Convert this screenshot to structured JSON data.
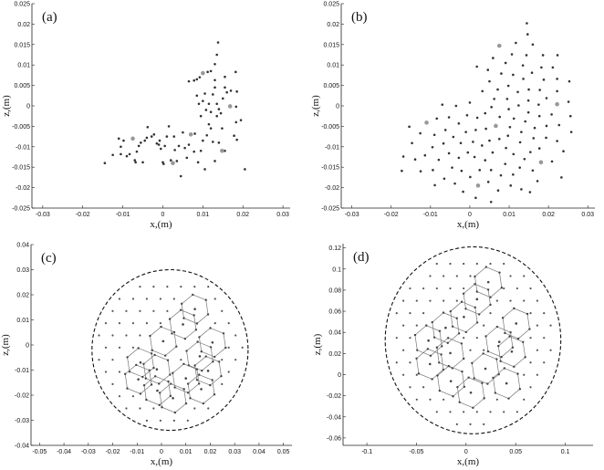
{
  "chart_data": [
    {
      "panel": "(a)",
      "type": "scatter",
      "xlabel": "x,(m)",
      "ylabel": "z,(m)",
      "xlim": [
        -0.0327,
        0.0318
      ],
      "ylim": [
        -0.025,
        0.025
      ],
      "xticks": [
        -0.03,
        -0.02,
        -0.01,
        0,
        0.01,
        0.02,
        0.03
      ],
      "xtick_labels": [
        "-0.03",
        "-0.02",
        "-0.01",
        "0",
        "0.01",
        "0.02",
        "0.03"
      ],
      "yticks": [
        -0.025,
        -0.02,
        -0.015,
        -0.01,
        -0.005,
        0,
        0.005,
        0.01,
        0.015,
        0.02,
        0.025
      ],
      "ytick_labels": [
        "-0.025",
        "-0.02",
        "-0.015",
        "-0.01",
        "-0.005",
        "0",
        "0.005",
        "0.01",
        "0.015",
        "0.02",
        "0.025"
      ],
      "points": [
        [
          -0.0145,
          -0.014
        ],
        [
          -0.0125,
          -0.012
        ],
        [
          -0.011,
          -0.008
        ],
        [
          -0.0105,
          -0.01
        ],
        [
          -0.0105,
          -0.0118
        ],
        [
          -0.0098,
          -0.0085
        ],
        [
          -0.009,
          -0.0123
        ],
        [
          -0.0083,
          -0.0118
        ],
        [
          -0.007,
          -0.0133
        ],
        [
          -0.0068,
          -0.0138
        ],
        [
          -0.0065,
          -0.0112
        ],
        [
          -0.006,
          -0.0098
        ],
        [
          -0.0055,
          -0.009
        ],
        [
          -0.005,
          -0.0138
        ],
        [
          -0.0045,
          -0.0085
        ],
        [
          -0.004,
          -0.0078
        ],
        [
          -0.0038,
          -0.0052
        ],
        [
          -0.0028,
          -0.0075
        ],
        [
          -0.0022,
          -0.007
        ],
        [
          -0.0015,
          -0.0092
        ],
        [
          -0.001,
          -0.0095
        ],
        [
          -0.0008,
          -0.0085
        ],
        [
          -0.0005,
          -0.0105
        ],
        [
          0,
          -0.0138
        ],
        [
          0.0002,
          -0.0142
        ],
        [
          0.0005,
          -0.0098
        ],
        [
          0.001,
          -0.0075
        ],
        [
          0.0015,
          -0.005
        ],
        [
          0.002,
          -0.0133
        ],
        [
          0.0028,
          -0.0075
        ],
        [
          0.003,
          -0.0108
        ],
        [
          0.0035,
          -0.0135
        ],
        [
          0.004,
          -0.0098
        ],
        [
          0.0045,
          -0.0172
        ],
        [
          0.005,
          -0.0065
        ],
        [
          0.0055,
          -0.0103
        ],
        [
          0.006,
          -0.0127
        ],
        [
          0.0065,
          -0.0095
        ],
        [
          0.0078,
          -0.0112
        ],
        [
          0.008,
          -0.0068
        ],
        [
          0.0088,
          -0.0138
        ],
        [
          0.0095,
          -0.011
        ],
        [
          0.01,
          -0.0085
        ],
        [
          0.0105,
          -0.0155
        ],
        [
          0.011,
          -0.0072
        ],
        [
          0.0115,
          -0.0045
        ],
        [
          0.012,
          -0.0055
        ],
        [
          0.0125,
          -0.0088
        ],
        [
          0.013,
          -0.0135
        ],
        [
          0.0135,
          -0.0025
        ],
        [
          0.014,
          -0.009
        ],
        [
          0.0148,
          -0.0055
        ],
        [
          0.0155,
          -0.011
        ],
        [
          0.0178,
          -0.0073
        ],
        [
          0.0185,
          -0.0083
        ],
        [
          0.0183,
          -0.004
        ],
        [
          0.0195,
          -0.0035
        ],
        [
          0.0205,
          -0.0155
        ],
        [
          0.0085,
          0.0025
        ],
        [
          0.009,
          0.0005
        ],
        [
          0.0095,
          -0.0025
        ],
        [
          0.01,
          0.0012
        ],
        [
          0.0105,
          0.003
        ],
        [
          0.0108,
          -0.001
        ],
        [
          0.0115,
          0.0005
        ],
        [
          0.012,
          -0.0015
        ],
        [
          0.0125,
          0.0028
        ],
        [
          0.013,
          0.0045
        ],
        [
          0.0135,
          0.0005
        ],
        [
          0.014,
          -0.0008
        ],
        [
          0.0145,
          -0.0018
        ],
        [
          0.015,
          0.0018
        ],
        [
          0.0155,
          0.0045
        ],
        [
          0.016,
          0.0033
        ],
        [
          0.017,
          0.0037
        ],
        [
          0.0185,
          0.0035
        ],
        [
          0.0183,
          -0.0002
        ],
        [
          0.0065,
          0.006
        ],
        [
          0.0078,
          0.0062
        ],
        [
          0.0085,
          0.0065
        ],
        [
          0.0092,
          0.007
        ],
        [
          0.0112,
          0.0083
        ],
        [
          0.012,
          0.0085
        ],
        [
          0.013,
          0.0063
        ],
        [
          0.0155,
          0.0071
        ],
        [
          0.0182,
          0.0083
        ],
        [
          0.013,
          0.0102
        ],
        [
          0.0135,
          0.0125
        ],
        [
          0.0138,
          0.0155
        ]
      ],
      "highlighted_points": [
        [
          -0.0075,
          -0.008
        ],
        [
          0.0025,
          -0.014
        ],
        [
          0.007,
          -0.007
        ],
        [
          0.01,
          0.008
        ],
        [
          0.0168,
          -0.0001
        ],
        [
          0.0148,
          -0.011
        ]
      ]
    },
    {
      "panel": "(b)",
      "type": "scatter",
      "xlabel": "x,(m)",
      "ylabel": "z,(m)",
      "xlim": [
        -0.0327,
        0.0318
      ],
      "ylim": [
        -0.025,
        0.025
      ],
      "xticks": [
        -0.03,
        -0.02,
        -0.01,
        0,
        0.01,
        0.02,
        0.03
      ],
      "xtick_labels": [
        "-0.03",
        "-0.02",
        "-0.01",
        "0",
        "0.01",
        "0.02",
        "0.03"
      ],
      "yticks": [
        -0.025,
        -0.02,
        -0.015,
        -0.01,
        -0.005,
        0,
        0.005,
        0.01,
        0.015,
        0.02,
        0.025
      ],
      "ytick_labels": [
        "-0.025",
        "-0.02",
        "-0.015",
        "-0.01",
        "-0.005",
        "0",
        "0.005",
        "0.01",
        "0.015",
        "0.02",
        "0.025"
      ],
      "points": [
        [
          0.0145,
          0.0202
        ],
        [
          0.0147,
          0.0175
        ],
        [
          0.0117,
          0.0154
        ],
        [
          0.016,
          0.015
        ],
        [
          0.0059,
          0.0117
        ],
        [
          0.0107,
          0.0126
        ],
        [
          0.0144,
          0.0124
        ],
        [
          0.0186,
          0.0124
        ],
        [
          0.0223,
          0.0124
        ],
        [
          0.0018,
          0.0096
        ],
        [
          0.0046,
          0.0088
        ],
        [
          0.0091,
          0.0105
        ],
        [
          0.0135,
          0.0099
        ],
        [
          0.0182,
          0.0094
        ],
        [
          0.0211,
          0.0094
        ],
        [
          0.008,
          0.0079
        ],
        [
          0.011,
          0.0076
        ],
        [
          0.0158,
          0.0081
        ],
        [
          0.0136,
          0.0066
        ],
        [
          0.0188,
          0.0064
        ],
        [
          0.0222,
          0.0066
        ],
        [
          0.0253,
          0.006
        ],
        [
          0.005,
          0.006
        ],
        [
          0.0098,
          0.0049
        ],
        [
          0.0032,
          0.0036
        ],
        [
          0.0071,
          0.004
        ],
        [
          0.0122,
          0.0034
        ],
        [
          0.015,
          0.004
        ],
        [
          0.0178,
          0.0039
        ],
        [
          0.0222,
          0.0036
        ],
        [
          0.0062,
          0.0017
        ],
        [
          0.0095,
          0.0017
        ],
        [
          0.0149,
          0.0013
        ],
        [
          0.0195,
          0.0019
        ],
        [
          0.0251,
          0.001
        ],
        [
          -0.007,
          0.0003
        ],
        [
          -0.0035,
          0
        ],
        [
          0,
          0.0008
        ],
        [
          0.0055,
          -0.0003
        ],
        [
          0.0124,
          0.0001
        ],
        [
          0.0175,
          0.0003
        ],
        [
          0.0099,
          -0.0008
        ],
        [
          -0.0007,
          -0.0023
        ],
        [
          0.0019,
          -0.0029
        ],
        [
          0.0039,
          -0.0018
        ],
        [
          0.0076,
          -0.0027
        ],
        [
          0.0112,
          -0.0031
        ],
        [
          0.0149,
          -0.0016
        ],
        [
          0.0177,
          -0.0025
        ],
        [
          0.0208,
          -0.0021
        ],
        [
          0.0256,
          -0.0025
        ],
        [
          -0.0084,
          -0.0031
        ],
        [
          -0.0053,
          -0.0028
        ],
        [
          -0.0028,
          -0.0043
        ],
        [
          -0.0154,
          -0.0051
        ],
        [
          0.0102,
          -0.0052
        ],
        [
          0.0141,
          -0.0038
        ],
        [
          0.0041,
          -0.0056
        ],
        [
          0.0015,
          -0.0059
        ],
        [
          -0.001,
          -0.0064
        ],
        [
          -0.0062,
          -0.0059
        ],
        [
          -0.0126,
          -0.0067
        ],
        [
          -0.009,
          -0.0071
        ],
        [
          -0.0042,
          -0.0076
        ],
        [
          0.0165,
          -0.0054
        ],
        [
          0.0195,
          -0.0049
        ],
        [
          0.0227,
          -0.0047
        ],
        [
          0.0258,
          -0.0064
        ],
        [
          0.0097,
          -0.0073
        ],
        [
          0.0131,
          -0.0064
        ],
        [
          0.0075,
          -0.0081
        ],
        [
          0.0162,
          -0.0079
        ],
        [
          0.0194,
          -0.0078
        ],
        [
          0.0222,
          -0.0086
        ],
        [
          0.005,
          -0.0085
        ],
        [
          0.0008,
          -0.0088
        ],
        [
          -0.0023,
          -0.0091
        ],
        [
          -0.0067,
          -0.0092
        ],
        [
          -0.0147,
          -0.0091
        ],
        [
          -0.0095,
          -0.0101
        ],
        [
          0.0128,
          -0.0089
        ],
        [
          0.0092,
          -0.0103
        ],
        [
          0.0031,
          -0.0097
        ],
        [
          0.0177,
          -0.0104
        ],
        [
          0.0238,
          -0.0111
        ],
        [
          -0.0053,
          -0.0116
        ],
        [
          -0.0005,
          -0.0114
        ],
        [
          0.0058,
          -0.0114
        ],
        [
          0.0111,
          -0.0118
        ],
        [
          0.0154,
          -0.0113
        ],
        [
          -0.0169,
          -0.0124
        ],
        [
          -0.0114,
          -0.0121
        ],
        [
          -0.0028,
          -0.0127
        ],
        [
          0.0012,
          -0.0125
        ],
        [
          0.0139,
          -0.013
        ],
        [
          0.0209,
          -0.0136
        ],
        [
          -0.0139,
          -0.0131
        ],
        [
          -0.0079,
          -0.0132
        ],
        [
          0.0039,
          -0.0133
        ],
        [
          0.009,
          -0.0142
        ],
        [
          -0.0045,
          -0.0151
        ],
        [
          0.0025,
          -0.0157
        ],
        [
          0.0054,
          -0.0157
        ],
        [
          0.0127,
          -0.0151
        ],
        [
          0.016,
          -0.0158
        ],
        [
          -0.0173,
          -0.0159
        ],
        [
          -0.0125,
          -0.016
        ],
        [
          -0.0094,
          -0.0157
        ],
        [
          -0.0021,
          -0.0159
        ],
        [
          0.0079,
          -0.017
        ],
        [
          0.011,
          -0.0168
        ],
        [
          0.0001,
          -0.0174
        ],
        [
          -0.0065,
          -0.0178
        ],
        [
          0.0233,
          -0.0175
        ],
        [
          0.0172,
          -0.0184
        ],
        [
          0.0047,
          -0.0186
        ],
        [
          -0.0038,
          -0.019
        ],
        [
          -0.0089,
          -0.0194
        ],
        [
          0.0104,
          -0.0195
        ],
        [
          0.0131,
          -0.0204
        ],
        [
          0.0072,
          -0.0207
        ],
        [
          -0.0017,
          -0.021
        ],
        [
          0.0153,
          -0.0211
        ],
        [
          0.0015,
          -0.0225
        ],
        [
          0.0054,
          -0.0235
        ]
      ],
      "highlighted_points": [
        [
          0.0075,
          0.0147
        ],
        [
          0.0222,
          0.0004
        ],
        [
          -0.011,
          -0.0041
        ],
        [
          0.0066,
          -0.0049
        ],
        [
          0.0181,
          -0.0138
        ],
        [
          0.0021,
          -0.0195
        ]
      ]
    },
    {
      "panel": "(c)",
      "type": "scatter",
      "xlabel": "x,(m)",
      "ylabel": "z,(m)",
      "xlim": [
        -0.0535,
        0.0535
      ],
      "ylim": [
        -0.04,
        0.04
      ],
      "xticks": [
        -0.05,
        -0.04,
        -0.03,
        -0.02,
        -0.01,
        0,
        0.01,
        0.02,
        0.03,
        0.04,
        0.05
      ],
      "xtick_labels": [
        "-0.05",
        "-0.04",
        "-0.03",
        "-0.02",
        "-0.01",
        "0",
        "0.01",
        "0.02",
        "0.03",
        "0.04",
        "0.05"
      ],
      "yticks": [
        -0.04,
        -0.03,
        -0.02,
        -0.01,
        0,
        0.01,
        0.02,
        0.03,
        0.04
      ],
      "ytick_labels": [
        "-0.04",
        "-0.03",
        "-0.02",
        "-0.01",
        "0",
        "0.01",
        "0.02",
        "0.03",
        "0.04"
      ],
      "boundary_circle": {
        "center": [
          0.0035,
          -0.002
        ],
        "radius": 0.032
      },
      "lattice_spacing": 0.0056,
      "cell_centers": [
        [
          0.0137,
          0.0143
        ],
        [
          0.0088,
          0.0082
        ],
        [
          0.0007,
          0.0015
        ],
        [
          0.0209,
          0.001
        ],
        [
          0.0157,
          -0.0045
        ],
        [
          -0.0019,
          -0.0097
        ],
        [
          -0.0086,
          -0.007
        ],
        [
          -0.0095,
          -0.0137
        ],
        [
          -0.0017,
          -0.0182
        ],
        [
          0.0047,
          -0.0212
        ],
        [
          0.01,
          -0.0133
        ],
        [
          0.0191,
          -0.0103
        ],
        [
          0.0163,
          -0.0176
        ]
      ],
      "cell_radius": 0.0058
    },
    {
      "panel": "(d)",
      "type": "scatter",
      "xlabel": "x,(m)",
      "ylabel": "z,(m)",
      "xlim": [
        -0.124,
        0.128
      ],
      "ylim": [
        -0.067,
        0.124
      ],
      "xticks": [
        -0.1,
        -0.05,
        0,
        0.05,
        0.1
      ],
      "xtick_labels": [
        "-0.1",
        "-0.05",
        "0",
        "0.05",
        "0.1"
      ],
      "yticks": [
        -0.06,
        -0.04,
        -0.02,
        0,
        0.02,
        0.04,
        0.06,
        0.08,
        0.1,
        0.12
      ],
      "ytick_labels": [
        "-0.06",
        "-0.04",
        "-0.02",
        "0",
        "0.02",
        "0.04",
        "0.06",
        "0.08",
        "0.1",
        "0.12"
      ],
      "boundary_circle": {
        "center": [
          0.007,
          0.0325
        ],
        "radius": 0.0885
      },
      "lattice_spacing": 0.0135,
      "cell_centers": [
        [
          0.0224,
          0.0876
        ],
        [
          0.011,
          0.0714
        ],
        [
          -0.0022,
          0.0546
        ],
        [
          -0.0206,
          0.0443
        ],
        [
          -0.0379,
          0.0322
        ],
        [
          -0.0159,
          0.0204
        ],
        [
          -0.0364,
          0.01
        ],
        [
          -0.0153,
          -0.0062
        ],
        [
          0.0048,
          -0.0171
        ],
        [
          0.0195,
          0.0056
        ],
        [
          0.0335,
          0.031
        ],
        [
          0.0505,
          0.0484
        ],
        [
          0.0461,
          0.0218
        ],
        [
          0.0408,
          -0.0083
        ]
      ],
      "cell_radius": 0.0145
    }
  ]
}
